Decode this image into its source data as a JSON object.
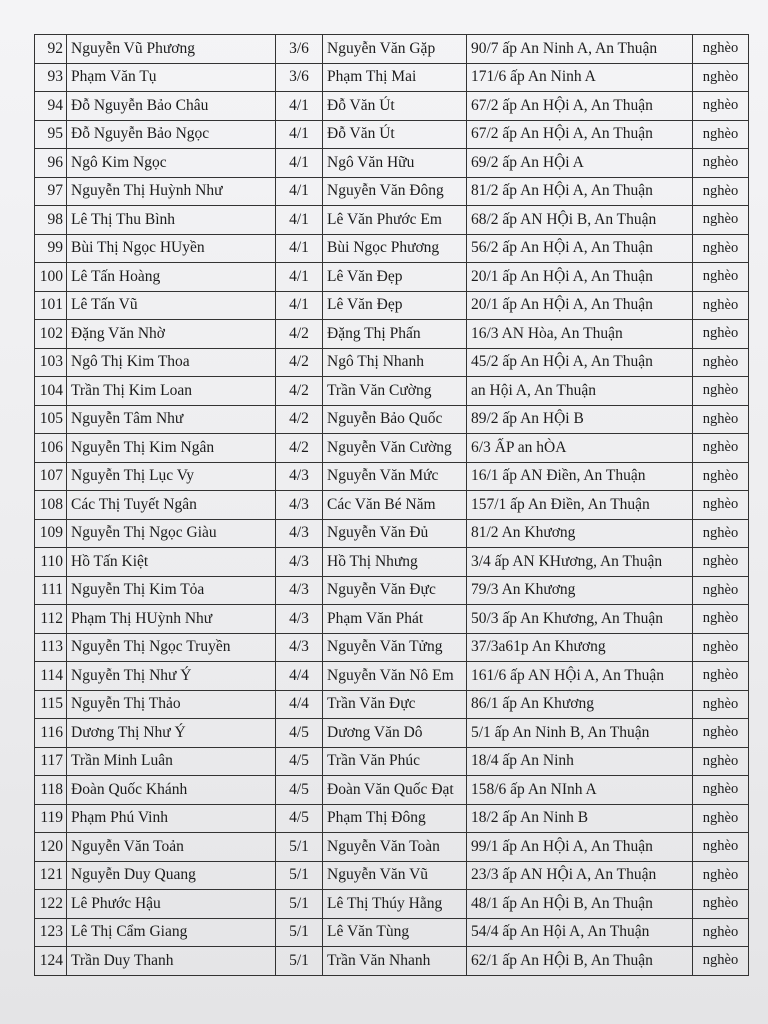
{
  "table": {
    "rows": [
      [
        92,
        "Nguyễn Vũ Phương",
        "3/6",
        "Nguyễn Văn Gặp",
        "90/7 ấp An Ninh A, An Thuận",
        "nghèo"
      ],
      [
        93,
        "Phạm Văn Tụ",
        "3/6",
        "Phạm Thị Mai",
        "171/6 ấp An Ninh A",
        "nghèo"
      ],
      [
        94,
        "Đỗ Nguyễn Bảo Châu",
        "4/1",
        "Đỗ Văn Út",
        "67/2 ấp An HỘi A, An Thuận",
        "nghèo"
      ],
      [
        95,
        "Đỗ Nguyễn Bảo Ngọc",
        "4/1",
        "Đỗ Văn Út",
        "67/2 ấp An HỘi A, An Thuận",
        "nghèo"
      ],
      [
        96,
        "Ngô Kim Ngọc",
        "4/1",
        "Ngô Văn Hữu",
        "69/2 ấp An HỘi A",
        "nghèo"
      ],
      [
        97,
        "Nguyễn Thị Huỳnh Như",
        "4/1",
        "Nguyễn Văn Đông",
        "81/2 ấp An HỘi A, An Thuận",
        "nghèo"
      ],
      [
        98,
        "Lê Thị Thu Bình",
        "4/1",
        "Lê Văn Phước Em",
        "68/2 ấp AN HỘi B, An Thuận",
        "nghèo"
      ],
      [
        99,
        "Bùi Thị Ngọc HUyền",
        "4/1",
        "Bùi Ngọc Phương",
        "56/2 ấp An HỘi A, An Thuận",
        "nghèo"
      ],
      [
        100,
        "Lê Tấn Hoàng",
        "4/1",
        "Lê Văn Đẹp",
        "20/1 ấp An HỘi A, An Thuận",
        "nghèo"
      ],
      [
        101,
        "Lê Tấn Vũ",
        "4/1",
        "Lê Văn Đẹp",
        "20/1 ấp An HỘi A, An Thuận",
        "nghèo"
      ],
      [
        102,
        "Đặng Văn Nhờ",
        "4/2",
        "Đặng Thị Phấn",
        "16/3 AN Hòa, An Thuận",
        "nghèo"
      ],
      [
        103,
        "Ngô Thị Kim Thoa",
        "4/2",
        "Ngô Thị Nhanh",
        "45/2 ấp An HỘi A, An Thuận",
        "nghèo"
      ],
      [
        104,
        "Trần Thị Kim Loan",
        "4/2",
        "Trần Văn Cường",
        "an Hội A, An Thuận",
        "nghèo"
      ],
      [
        105,
        "Nguyễn Tâm Như",
        "4/2",
        "Nguyễn Bảo Quốc",
        "89/2 ấp An HỘi B",
        "nghèo"
      ],
      [
        106,
        "Nguyễn Thị Kim Ngân",
        "4/2",
        "Nguyễn Văn Cường",
        "6/3 ẤP an hÒA",
        "nghèo"
      ],
      [
        107,
        "Nguyễn Thị Lục Vy",
        "4/3",
        "Nguyễn Văn Mức",
        "16/1 ấp AN Điền, An Thuận",
        "nghèo"
      ],
      [
        108,
        "Các Thị Tuyết Ngân",
        "4/3",
        "Các Văn Bé Năm",
        "157/1 ấp An Điền, An Thuận",
        "nghèo"
      ],
      [
        109,
        "Nguyễn Thị Ngọc Giàu",
        "4/3",
        "Nguyễn Văn Đủ",
        "81/2 An Khương",
        "nghèo"
      ],
      [
        110,
        "Hồ Tấn Kiệt",
        "4/3",
        "Hồ Thị Nhưng",
        "3/4 ấp AN KHương, An Thuận",
        "nghèo"
      ],
      [
        111,
        "Nguyễn Thị Kim Tỏa",
        "4/3",
        "Nguyễn Văn Đực",
        "79/3 An Khương",
        "nghèo"
      ],
      [
        112,
        "Phạm Thị HUỳnh Như",
        "4/3",
        "Phạm Văn Phát",
        "50/3 ấp An Khương, An Thuận",
        "nghèo"
      ],
      [
        113,
        "Nguyễn Thị Ngọc Truyền",
        "4/3",
        "Nguyễn Văn Tửng",
        "37/3a61p An Khương",
        "nghèo"
      ],
      [
        114,
        "Nguyễn Thị Như Ý",
        "4/4",
        "Nguyễn Văn Nô Em",
        "161/6 ấp AN HỘi A, An Thuận",
        "nghèo"
      ],
      [
        115,
        "Nguyễn Thị Thảo",
        "4/4",
        "Trần Văn Đực",
        "86/1 ấp An Khương",
        "nghèo"
      ],
      [
        116,
        "Dương Thị Như Ý",
        "4/5",
        "Dương Văn Dô",
        "5/1 ấp An Ninh B, An Thuận",
        "nghèo"
      ],
      [
        117,
        "Trần Minh Luân",
        "4/5",
        "Trần Văn Phúc",
        "18/4 ấp An Ninh",
        "nghèo"
      ],
      [
        118,
        "Đoàn Quốc Khánh",
        "4/5",
        "Đoàn Văn Quốc Đạt",
        "158/6 ấp An NInh A",
        "nghèo"
      ],
      [
        119,
        "Phạm Phú Vinh",
        "4/5",
        "Phạm Thị Đông",
        "18/2 ấp An Ninh B",
        "nghèo"
      ],
      [
        120,
        "Nguyễn Văn Toản",
        "5/1",
        "Nguyễn Văn Toàn",
        "99/1 ấp An HỘi A, An Thuận",
        "nghèo"
      ],
      [
        121,
        "Nguyễn Duy Quang",
        "5/1",
        "Nguyễn Văn Vũ",
        "23/3 ấp AN HỘi A, An Thuận",
        "nghèo"
      ],
      [
        122,
        "Lê Phước Hậu",
        "5/1",
        "Lê Thị Thúy Hằng",
        "48/1 ấp An HỘi B, An Thuận",
        "nghèo"
      ],
      [
        123,
        "Lê Thị Cẩm Giang",
        "5/1",
        "Lê Văn Tùng",
        "54/4 ấp An Hội A, An Thuận",
        "nghèo"
      ],
      [
        124,
        "Trần Duy Thanh",
        "5/1",
        "Trần Văn Nhanh",
        "62/1 ấp An HỘi B, An Thuận",
        "nghèo"
      ]
    ]
  }
}
